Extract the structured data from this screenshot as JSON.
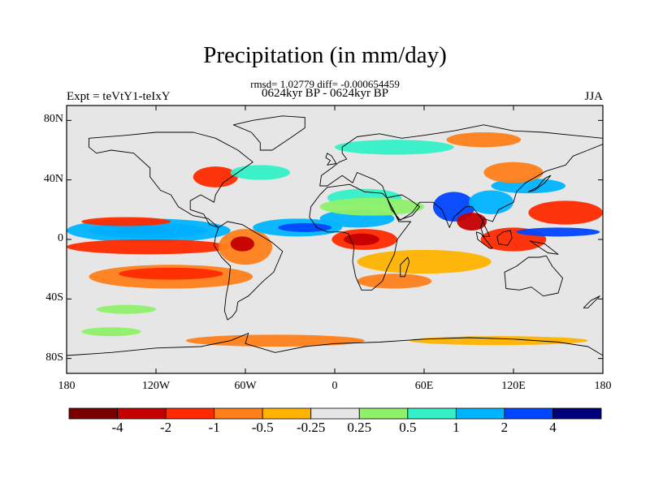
{
  "title": "Precipitation (in mm/day)",
  "subtitle_stats": "rmsd= 1.02779 diff= -0.000654459",
  "subtitle_period": "0624kyr BP - 0624kyr BP",
  "experiment_label": "Expt = teVtY1-teIxY",
  "season_label": "JJA",
  "map": {
    "projection": "cylindrical-equidistant",
    "lon_range": [
      -180,
      180
    ],
    "lat_range": [
      -90,
      90
    ],
    "background_color": "#e6e6e6",
    "coastline_color": "#000000"
  },
  "axes": {
    "y_ticks": [
      {
        "label": "80N",
        "lat": 80
      },
      {
        "label": "40N",
        "lat": 40
      },
      {
        "label": "0",
        "lat": 0
      },
      {
        "label": "40S",
        "lat": -40
      },
      {
        "label": "80S",
        "lat": -80
      }
    ],
    "x_ticks": [
      {
        "label": "180",
        "lon": -180
      },
      {
        "label": "120W",
        "lon": -120
      },
      {
        "label": "60W",
        "lon": -60
      },
      {
        "label": "0",
        "lon": 0
      },
      {
        "label": "60E",
        "lon": 60
      },
      {
        "label": "120E",
        "lon": 120
      },
      {
        "label": "180",
        "lon": 180
      }
    ]
  },
  "colorbar": {
    "colors": [
      "#7a0000",
      "#c40000",
      "#ff2a00",
      "#ff7f1a",
      "#ffb300",
      "#e6e6e6",
      "#8ff06a",
      "#33f0c8",
      "#00b4ff",
      "#0046ff",
      "#00007a"
    ],
    "labels": [
      "-4",
      "-2",
      "-1",
      "-0.5",
      "-0.25",
      "0.25",
      "0.5",
      "1",
      "2",
      "4"
    ]
  },
  "anomaly_regions": [
    {
      "name": "pacific-itcz-wet-core",
      "lon": -125,
      "lat": 6,
      "rx": 40,
      "ry": 5,
      "color": "#0046ff"
    },
    {
      "name": "pacific-itcz-wet-center",
      "lon": -130,
      "lat": 6,
      "rx": 18,
      "ry": 2.5,
      "color": "#00007a"
    },
    {
      "name": "pacific-itcz-wet-band",
      "lon": -125,
      "lat": 6,
      "rx": 55,
      "ry": 8,
      "color": "#00b4ff"
    },
    {
      "name": "pacific-itcz-south-dry",
      "lon": -125,
      "lat": -5,
      "rx": 55,
      "ry": 5,
      "color": "#ff2a00"
    },
    {
      "name": "pacific-north-dry",
      "lon": -140,
      "lat": 12,
      "rx": 30,
      "ry": 3,
      "color": "#ff2a00"
    },
    {
      "name": "south-pacific-dry",
      "lon": -110,
      "lat": -25,
      "rx": 55,
      "ry": 8,
      "color": "#ff7f1a"
    },
    {
      "name": "south-pacific-dry-inner",
      "lon": -110,
      "lat": -23,
      "rx": 35,
      "ry": 4,
      "color": "#ff2a00"
    },
    {
      "name": "south-pacific-wet",
      "lon": -140,
      "lat": -47,
      "rx": 20,
      "ry": 3,
      "color": "#8ff06a"
    },
    {
      "name": "amazon-dry",
      "lon": -60,
      "lat": -5,
      "rx": 18,
      "ry": 12,
      "color": "#ff7f1a"
    },
    {
      "name": "amazon-dry-core",
      "lon": -62,
      "lat": -3,
      "rx": 8,
      "ry": 5,
      "color": "#c40000"
    },
    {
      "name": "atlantic-itcz-wet",
      "lon": -25,
      "lat": 8,
      "rx": 30,
      "ry": 6,
      "color": "#00b4ff"
    },
    {
      "name": "atlantic-itcz-core",
      "lon": -20,
      "lat": 8,
      "rx": 18,
      "ry": 3,
      "color": "#0046ff"
    },
    {
      "name": "sahel-wet",
      "lon": 15,
      "lat": 14,
      "rx": 25,
      "ry": 6,
      "color": "#00b4ff"
    },
    {
      "name": "africa-equatorial-dry",
      "lon": 20,
      "lat": 0,
      "rx": 22,
      "ry": 7,
      "color": "#ff2a00"
    },
    {
      "name": "africa-dry-core",
      "lon": 18,
      "lat": 0,
      "rx": 12,
      "ry": 4,
      "color": "#c40000"
    },
    {
      "name": "north-africa-wet",
      "lon": 20,
      "lat": 28,
      "rx": 25,
      "ry": 6,
      "color": "#33f0c8"
    },
    {
      "name": "sahara-wet-light",
      "lon": 25,
      "lat": 22,
      "rx": 35,
      "ry": 6,
      "color": "#8ff06a"
    },
    {
      "name": "indian-ocean-dry",
      "lon": 60,
      "lat": -15,
      "rx": 45,
      "ry": 8,
      "color": "#ffb300"
    },
    {
      "name": "south-indian-dry",
      "lon": 40,
      "lat": -28,
      "rx": 25,
      "ry": 5,
      "color": "#ff7f1a"
    },
    {
      "name": "india-wet",
      "lon": 80,
      "lat": 22,
      "rx": 14,
      "ry": 10,
      "color": "#0046ff"
    },
    {
      "name": "bay-of-bengal-dry",
      "lon": 92,
      "lat": 12,
      "rx": 10,
      "ry": 6,
      "color": "#c40000"
    },
    {
      "name": "asia-monsoon-wet",
      "lon": 105,
      "lat": 25,
      "rx": 15,
      "ry": 8,
      "color": "#00b4ff"
    },
    {
      "name": "maritime-continent-dry",
      "lon": 120,
      "lat": 0,
      "rx": 22,
      "ry": 8,
      "color": "#ff2a00"
    },
    {
      "name": "west-pacific-dry",
      "lon": 155,
      "lat": 18,
      "rx": 25,
      "ry": 8,
      "color": "#ff2a00"
    },
    {
      "name": "west-pacific-wet",
      "lon": 150,
      "lat": 5,
      "rx": 28,
      "ry": 3,
      "color": "#0046ff"
    },
    {
      "name": "east-asia-wet",
      "lon": 130,
      "lat": 36,
      "rx": 25,
      "ry": 5,
      "color": "#00b4ff"
    },
    {
      "name": "east-asia-dry",
      "lon": 120,
      "lat": 45,
      "rx": 20,
      "ry": 7,
      "color": "#ff7f1a"
    },
    {
      "name": "north-america-dry",
      "lon": -80,
      "lat": 42,
      "rx": 15,
      "ry": 7,
      "color": "#ff2a00"
    },
    {
      "name": "north-atlantic-wet",
      "lon": -50,
      "lat": 45,
      "rx": 20,
      "ry": 5,
      "color": "#33f0c8"
    },
    {
      "name": "siberia-wet",
      "lon": 40,
      "lat": 62,
      "rx": 40,
      "ry": 5,
      "color": "#33f0c8"
    },
    {
      "name": "arctic-dry",
      "lon": 100,
      "lat": 67,
      "rx": 25,
      "ry": 5,
      "color": "#ff7f1a"
    },
    {
      "name": "southern-ocean-dry",
      "lon": -40,
      "lat": -68,
      "rx": 60,
      "ry": 4,
      "color": "#ff7f1a"
    },
    {
      "name": "southern-ocean-dry-east",
      "lon": 110,
      "lat": -68,
      "rx": 60,
      "ry": 3,
      "color": "#ffb300"
    },
    {
      "name": "antarctic-wet",
      "lon": -150,
      "lat": -62,
      "rx": 20,
      "ry": 3,
      "color": "#8ff06a"
    }
  ],
  "landmasses": [
    {
      "name": "north-america",
      "points": [
        [
          -165,
          68
        ],
        [
          -140,
          70
        ],
        [
          -120,
          72
        ],
        [
          -95,
          72
        ],
        [
          -80,
          68
        ],
        [
          -65,
          60
        ],
        [
          -55,
          52
        ],
        [
          -65,
          45
        ],
        [
          -75,
          38
        ],
        [
          -80,
          30
        ],
        [
          -81,
          25
        ],
        [
          -90,
          30
        ],
        [
          -97,
          26
        ],
        [
          -97,
          20
        ],
        [
          -88,
          17
        ],
        [
          -84,
          10
        ],
        [
          -78,
          8
        ],
        [
          -85,
          14
        ],
        [
          -95,
          16
        ],
        [
          -105,
          22
        ],
        [
          -110,
          30
        ],
        [
          -117,
          33
        ],
        [
          -124,
          42
        ],
        [
          -124,
          48
        ],
        [
          -135,
          58
        ],
        [
          -150,
          60
        ],
        [
          -160,
          58
        ],
        [
          -165,
          62
        ]
      ]
    },
    {
      "name": "south-america",
      "points": [
        [
          -78,
          8
        ],
        [
          -72,
          12
        ],
        [
          -62,
          10
        ],
        [
          -52,
          4
        ],
        [
          -42,
          -2
        ],
        [
          -35,
          -8
        ],
        [
          -38,
          -15
        ],
        [
          -41,
          -22
        ],
        [
          -48,
          -28
        ],
        [
          -55,
          -35
        ],
        [
          -58,
          -38
        ],
        [
          -65,
          -42
        ],
        [
          -66,
          -48
        ],
        [
          -69,
          -52
        ],
        [
          -72,
          -54
        ],
        [
          -74,
          -48
        ],
        [
          -73,
          -38
        ],
        [
          -71,
          -28
        ],
        [
          -70,
          -18
        ],
        [
          -76,
          -12
        ],
        [
          -81,
          -4
        ],
        [
          -80,
          2
        ]
      ]
    },
    {
      "name": "africa",
      "points": [
        [
          -17,
          15
        ],
        [
          -16,
          22
        ],
        [
          -10,
          30
        ],
        [
          -5,
          35
        ],
        [
          10,
          37
        ],
        [
          20,
          32
        ],
        [
          32,
          31
        ],
        [
          35,
          28
        ],
        [
          43,
          12
        ],
        [
          51,
          12
        ],
        [
          42,
          0
        ],
        [
          40,
          -10
        ],
        [
          35,
          -20
        ],
        [
          32,
          -28
        ],
        [
          25,
          -34
        ],
        [
          18,
          -34
        ],
        [
          14,
          -25
        ],
        [
          12,
          -15
        ],
        [
          13,
          -5
        ],
        [
          9,
          4
        ],
        [
          5,
          5
        ],
        [
          -5,
          5
        ],
        [
          -12,
          8
        ]
      ]
    },
    {
      "name": "eurasia",
      "points": [
        [
          -10,
          36
        ],
        [
          -9,
          43
        ],
        [
          -2,
          48
        ],
        [
          3,
          52
        ],
        [
          8,
          54
        ],
        [
          5,
          58
        ],
        [
          5,
          62
        ],
        [
          15,
          69
        ],
        [
          30,
          71
        ],
        [
          45,
          68
        ],
        [
          60,
          70
        ],
        [
          80,
          73
        ],
        [
          100,
          77
        ],
        [
          120,
          73
        ],
        [
          140,
          72
        ],
        [
          160,
          70
        ],
        [
          180,
          68
        ],
        [
          180,
          64
        ],
        [
          170,
          60
        ],
        [
          160,
          56
        ],
        [
          155,
          50
        ],
        [
          142,
          46
        ],
        [
          135,
          42
        ],
        [
          128,
          38
        ],
        [
          122,
          32
        ],
        [
          120,
          25
        ],
        [
          110,
          20
        ],
        [
          106,
          12
        ],
        [
          100,
          14
        ],
        [
          98,
          8
        ],
        [
          100,
          2
        ],
        [
          104,
          2
        ],
        [
          98,
          15
        ],
        [
          92,
          22
        ],
        [
          88,
          22
        ],
        [
          80,
          15
        ],
        [
          77,
          8
        ],
        [
          72,
          20
        ],
        [
          66,
          25
        ],
        [
          57,
          25
        ],
        [
          52,
          18
        ],
        [
          44,
          13
        ],
        [
          38,
          20
        ],
        [
          35,
          28
        ],
        [
          32,
          36
        ],
        [
          27,
          40
        ],
        [
          15,
          45
        ],
        [
          12,
          38
        ],
        [
          5,
          43
        ],
        [
          -5,
          36
        ]
      ]
    },
    {
      "name": "australia",
      "points": [
        [
          114,
          -22
        ],
        [
          122,
          -18
        ],
        [
          130,
          -12
        ],
        [
          137,
          -12
        ],
        [
          142,
          -11
        ],
        [
          146,
          -18
        ],
        [
          153,
          -26
        ],
        [
          150,
          -36
        ],
        [
          140,
          -38
        ],
        [
          132,
          -32
        ],
        [
          124,
          -34
        ],
        [
          115,
          -33
        ]
      ]
    },
    {
      "name": "greenland",
      "points": [
        [
          -50,
          60
        ],
        [
          -42,
          60
        ],
        [
          -30,
          68
        ],
        [
          -20,
          75
        ],
        [
          -20,
          82
        ],
        [
          -35,
          83
        ],
        [
          -55,
          80
        ],
        [
          -68,
          77
        ],
        [
          -56,
          72
        ],
        [
          -50,
          65
        ]
      ]
    },
    {
      "name": "antarctica",
      "points": [
        [
          -180,
          -78
        ],
        [
          -150,
          -76
        ],
        [
          -120,
          -73
        ],
        [
          -90,
          -72
        ],
        [
          -70,
          -68
        ],
        [
          -58,
          -63
        ],
        [
          -60,
          -70
        ],
        [
          -40,
          -76
        ],
        [
          -20,
          -72
        ],
        [
          0,
          -70
        ],
        [
          30,
          -69
        ],
        [
          60,
          -67
        ],
        [
          90,
          -66
        ],
        [
          120,
          -67
        ],
        [
          150,
          -69
        ],
        [
          170,
          -72
        ],
        [
          180,
          -78
        ],
        [
          180,
          -90
        ],
        [
          -180,
          -90
        ]
      ]
    },
    {
      "name": "madagascar",
      "points": [
        [
          44,
          -25
        ],
        [
          47,
          -25
        ],
        [
          50,
          -15
        ],
        [
          49,
          -12
        ],
        [
          44,
          -17
        ]
      ]
    },
    {
      "name": "borneo",
      "points": [
        [
          109,
          2
        ],
        [
          113,
          5
        ],
        [
          118,
          6
        ],
        [
          119,
          1
        ],
        [
          116,
          -4
        ],
        [
          110,
          -3
        ]
      ]
    },
    {
      "name": "sumatra",
      "points": [
        [
          95,
          5
        ],
        [
          98,
          4
        ],
        [
          106,
          -6
        ],
        [
          104,
          -6
        ],
        [
          96,
          0
        ]
      ]
    },
    {
      "name": "new-guinea",
      "points": [
        [
          131,
          -1
        ],
        [
          141,
          -3
        ],
        [
          150,
          -10
        ],
        [
          143,
          -9
        ],
        [
          137,
          -5
        ]
      ]
    },
    {
      "name": "japan",
      "points": [
        [
          130,
          32
        ],
        [
          136,
          35
        ],
        [
          141,
          41
        ],
        [
          145,
          43
        ],
        [
          141,
          38
        ],
        [
          134,
          33
        ]
      ]
    },
    {
      "name": "uk",
      "points": [
        [
          -5,
          50
        ],
        [
          1,
          51
        ],
        [
          -2,
          56
        ],
        [
          -5,
          58
        ],
        [
          -6,
          55
        ],
        [
          -3,
          53
        ]
      ]
    },
    {
      "name": "new-zealand",
      "points": [
        [
          167,
          -46
        ],
        [
          172,
          -41
        ],
        [
          178,
          -38
        ],
        [
          175,
          -41
        ],
        [
          170,
          -46
        ]
      ]
    },
    {
      "name": "arabia",
      "points": [
        [
          35,
          28
        ],
        [
          43,
          13
        ],
        [
          52,
          16
        ],
        [
          57,
          22
        ],
        [
          50,
          27
        ],
        [
          45,
          30
        ]
      ]
    }
  ]
}
